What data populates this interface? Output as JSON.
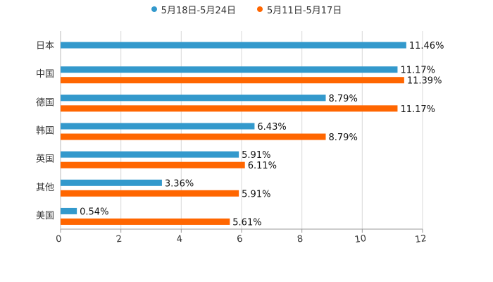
{
  "chart_data": {
    "type": "bar",
    "orientation": "horizontal",
    "title": "",
    "xlabel": "",
    "ylabel": "",
    "xlim": [
      0,
      12
    ],
    "xticks": [
      "0",
      "2",
      "4",
      "6",
      "8",
      "10",
      "12"
    ],
    "grid": true,
    "legend_position": "top-center",
    "categories": [
      "日本",
      "中国",
      "德国",
      "韩国",
      "英国",
      "其他",
      "美国"
    ],
    "series": [
      {
        "name": "5月18日-5月24日",
        "color": "#3399cc",
        "values": [
          11.46,
          11.17,
          8.79,
          6.43,
          5.91,
          3.36,
          0.54
        ],
        "labels": [
          "11.46%",
          "11.17%",
          "8.79%",
          "6.43%",
          "5.91%",
          "3.36%",
          "0.54%"
        ]
      },
      {
        "name": "5月11日-5月17日",
        "color": "#ff6600",
        "values": [
          null,
          11.39,
          11.17,
          8.79,
          6.11,
          5.91,
          5.61
        ],
        "labels": [
          "",
          "11.39%",
          "11.17%",
          "8.79%",
          "6.11%",
          "5.91%",
          "5.61%"
        ]
      }
    ]
  }
}
